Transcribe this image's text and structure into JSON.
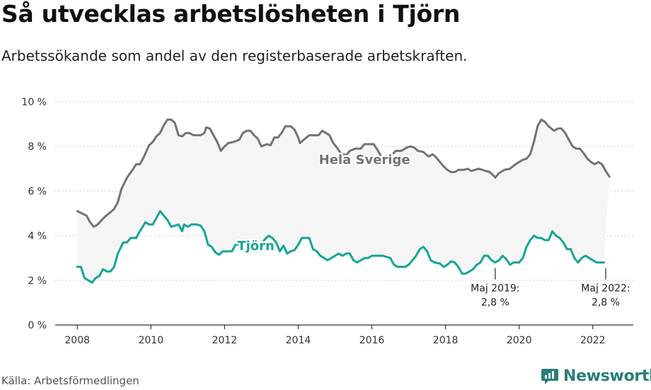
{
  "title": "Så utvecklas arbetslösheten i Tjörn",
  "subtitle": "Arbetssökande som andel av den registerbaserade arbetskraften.",
  "source": "Källa: Arbetsförmedlingen",
  "brand": {
    "name": "Newsworthy",
    "icon": "newsworthy-chat-icon"
  },
  "colors": {
    "sweden": "#737373",
    "tjorn": "#14a595",
    "area": "#f5f5f5",
    "axis": "#333333",
    "grid": "#cccccc",
    "brand": "#2a7d7b"
  },
  "chart_data": {
    "type": "line",
    "title": "Så utvecklas arbetslösheten i Tjörn",
    "xlabel": "",
    "ylabel": "",
    "xlim": [
      2007.4,
      2023.1
    ],
    "ylim": [
      0,
      10
    ],
    "yticks": [
      0,
      2,
      4,
      6,
      8,
      10
    ],
    "ytick_labels": [
      "0 %",
      "2 %",
      "4 %",
      "6 %",
      "8 %",
      "10 %"
    ],
    "xticks": [
      2008,
      2010,
      2012,
      2014,
      2016,
      2018,
      2020,
      2022
    ],
    "xtick_labels": [
      "2008",
      "2010",
      "2012",
      "2014",
      "2016",
      "2018",
      "2020",
      "2022"
    ],
    "grid": true,
    "series": [
      {
        "name": "Hela Sverige",
        "label": "Hela Sverige",
        "label_at": [
          2015.8,
          7.4
        ],
        "points": [
          [
            2008.0,
            5.1
          ],
          [
            2008.25,
            4.9
          ],
          [
            2008.35,
            4.6
          ],
          [
            2008.45,
            4.4
          ],
          [
            2008.55,
            4.5
          ],
          [
            2008.75,
            4.85
          ],
          [
            2008.9,
            5.05
          ],
          [
            2009.0,
            5.2
          ],
          [
            2009.1,
            5.5
          ],
          [
            2009.2,
            6.1
          ],
          [
            2009.35,
            6.6
          ],
          [
            2009.5,
            6.95
          ],
          [
            2009.6,
            7.2
          ],
          [
            2009.7,
            7.2
          ],
          [
            2009.8,
            7.5
          ],
          [
            2009.95,
            8.05
          ],
          [
            2010.05,
            8.2
          ],
          [
            2010.15,
            8.45
          ],
          [
            2010.25,
            8.6
          ],
          [
            2010.35,
            8.95
          ],
          [
            2010.45,
            9.2
          ],
          [
            2010.55,
            9.2
          ],
          [
            2010.65,
            9.05
          ],
          [
            2010.75,
            8.5
          ],
          [
            2010.85,
            8.45
          ],
          [
            2010.95,
            8.6
          ],
          [
            2011.05,
            8.6
          ],
          [
            2011.15,
            8.5
          ],
          [
            2011.35,
            8.5
          ],
          [
            2011.45,
            8.6
          ],
          [
            2011.5,
            8.85
          ],
          [
            2011.6,
            8.8
          ],
          [
            2011.7,
            8.5
          ],
          [
            2011.8,
            8.2
          ],
          [
            2011.9,
            7.8
          ],
          [
            2012.0,
            8.0
          ],
          [
            2012.1,
            8.15
          ],
          [
            2012.25,
            8.2
          ],
          [
            2012.4,
            8.3
          ],
          [
            2012.5,
            8.6
          ],
          [
            2012.6,
            8.7
          ],
          [
            2012.7,
            8.7
          ],
          [
            2012.8,
            8.5
          ],
          [
            2012.9,
            8.35
          ],
          [
            2013.0,
            8.0
          ],
          [
            2013.15,
            8.1
          ],
          [
            2013.25,
            8.05
          ],
          [
            2013.35,
            8.4
          ],
          [
            2013.45,
            8.4
          ],
          [
            2013.55,
            8.6
          ],
          [
            2013.65,
            8.9
          ],
          [
            2013.8,
            8.9
          ],
          [
            2013.9,
            8.75
          ],
          [
            2014.0,
            8.4
          ],
          [
            2014.05,
            8.15
          ],
          [
            2014.15,
            8.3
          ],
          [
            2014.3,
            8.5
          ],
          [
            2014.45,
            8.5
          ],
          [
            2014.55,
            8.5
          ],
          [
            2014.65,
            8.7
          ],
          [
            2014.75,
            8.6
          ],
          [
            2014.85,
            8.5
          ],
          [
            2014.95,
            8.15
          ],
          [
            2015.05,
            7.95
          ],
          [
            2015.15,
            7.7
          ],
          [
            2015.3,
            7.6
          ],
          [
            2015.4,
            7.8
          ],
          [
            2015.55,
            7.9
          ],
          [
            2015.7,
            7.9
          ],
          [
            2015.8,
            8.1
          ],
          [
            2015.9,
            8.1
          ],
          [
            2016.05,
            8.1
          ],
          [
            2016.15,
            7.85
          ],
          [
            2016.25,
            7.55
          ],
          [
            2016.35,
            7.5
          ],
          [
            2016.5,
            7.55
          ],
          [
            2016.65,
            7.8
          ],
          [
            2016.8,
            7.8
          ],
          [
            2016.95,
            7.95
          ],
          [
            2017.05,
            8.0
          ],
          [
            2017.15,
            7.95
          ],
          [
            2017.25,
            7.8
          ],
          [
            2017.4,
            7.75
          ],
          [
            2017.5,
            7.6
          ],
          [
            2017.55,
            7.55
          ],
          [
            2017.65,
            7.65
          ],
          [
            2017.75,
            7.5
          ],
          [
            2017.85,
            7.3
          ],
          [
            2017.95,
            7.1
          ],
          [
            2018.05,
            6.95
          ],
          [
            2018.15,
            6.85
          ],
          [
            2018.25,
            6.85
          ],
          [
            2018.35,
            6.95
          ],
          [
            2018.5,
            6.95
          ],
          [
            2018.6,
            7.0
          ],
          [
            2018.7,
            6.9
          ],
          [
            2018.8,
            6.95
          ],
          [
            2018.9,
            7.0
          ],
          [
            2019.0,
            6.95
          ],
          [
            2019.1,
            6.9
          ],
          [
            2019.2,
            6.85
          ],
          [
            2019.3,
            6.7
          ],
          [
            2019.35,
            6.6
          ],
          [
            2019.45,
            6.8
          ],
          [
            2019.6,
            6.95
          ],
          [
            2019.75,
            7.0
          ],
          [
            2019.9,
            7.2
          ],
          [
            2020.0,
            7.3
          ],
          [
            2020.1,
            7.4
          ],
          [
            2020.2,
            7.45
          ],
          [
            2020.3,
            7.65
          ],
          [
            2020.4,
            8.2
          ],
          [
            2020.5,
            8.9
          ],
          [
            2020.6,
            9.2
          ],
          [
            2020.7,
            9.1
          ],
          [
            2020.8,
            8.9
          ],
          [
            2020.95,
            8.7
          ],
          [
            2021.05,
            8.8
          ],
          [
            2021.15,
            8.8
          ],
          [
            2021.25,
            8.6
          ],
          [
            2021.35,
            8.3
          ],
          [
            2021.45,
            8.0
          ],
          [
            2021.55,
            7.9
          ],
          [
            2021.65,
            7.9
          ],
          [
            2021.75,
            7.7
          ],
          [
            2021.85,
            7.45
          ],
          [
            2021.95,
            7.3
          ],
          [
            2022.05,
            7.2
          ],
          [
            2022.15,
            7.3
          ],
          [
            2022.25,
            7.2
          ],
          [
            2022.35,
            6.9
          ],
          [
            2022.45,
            6.65
          ]
        ]
      },
      {
        "name": "Tjörn",
        "label": "Tjörn",
        "label_at": [
          2012.85,
          3.55
        ],
        "points": [
          [
            2008.0,
            2.6
          ],
          [
            2008.1,
            2.6
          ],
          [
            2008.2,
            2.1
          ],
          [
            2008.3,
            2.0
          ],
          [
            2008.4,
            1.9
          ],
          [
            2008.5,
            2.1
          ],
          [
            2008.6,
            2.2
          ],
          [
            2008.7,
            2.5
          ],
          [
            2008.8,
            2.4
          ],
          [
            2008.9,
            2.4
          ],
          [
            2009.0,
            2.6
          ],
          [
            2009.1,
            3.2
          ],
          [
            2009.25,
            3.7
          ],
          [
            2009.35,
            3.7
          ],
          [
            2009.45,
            3.9
          ],
          [
            2009.6,
            3.9
          ],
          [
            2009.7,
            4.2
          ],
          [
            2009.85,
            4.6
          ],
          [
            2009.95,
            4.5
          ],
          [
            2010.05,
            4.5
          ],
          [
            2010.15,
            4.8
          ],
          [
            2010.25,
            5.1
          ],
          [
            2010.35,
            4.9
          ],
          [
            2010.45,
            4.7
          ],
          [
            2010.55,
            4.4
          ],
          [
            2010.65,
            4.45
          ],
          [
            2010.75,
            4.5
          ],
          [
            2010.85,
            4.2
          ],
          [
            2010.9,
            4.5
          ],
          [
            2011.0,
            4.4
          ],
          [
            2011.1,
            4.5
          ],
          [
            2011.25,
            4.5
          ],
          [
            2011.35,
            4.45
          ],
          [
            2011.45,
            4.2
          ],
          [
            2011.55,
            3.6
          ],
          [
            2011.65,
            3.5
          ],
          [
            2011.75,
            3.25
          ],
          [
            2011.85,
            3.15
          ],
          [
            2011.95,
            3.3
          ],
          [
            2012.1,
            3.3
          ],
          [
            2012.2,
            3.3
          ],
          [
            2012.3,
            3.6
          ],
          [
            2012.4,
            3.6
          ],
          [
            2012.5,
            3.8
          ],
          [
            2012.6,
            3.6
          ],
          [
            2012.7,
            3.6
          ],
          [
            2012.8,
            3.3
          ],
          [
            2012.9,
            3.5
          ],
          [
            2013.0,
            3.6
          ],
          [
            2013.1,
            3.85
          ],
          [
            2013.2,
            4.0
          ],
          [
            2013.3,
            3.9
          ],
          [
            2013.4,
            3.7
          ],
          [
            2013.5,
            3.3
          ],
          [
            2013.6,
            3.55
          ],
          [
            2013.7,
            3.2
          ],
          [
            2013.8,
            3.3
          ],
          [
            2013.9,
            3.35
          ],
          [
            2014.0,
            3.6
          ],
          [
            2014.1,
            3.9
          ],
          [
            2014.2,
            3.9
          ],
          [
            2014.3,
            3.9
          ],
          [
            2014.4,
            3.4
          ],
          [
            2014.5,
            3.3
          ],
          [
            2014.6,
            3.1
          ],
          [
            2014.7,
            3.0
          ],
          [
            2014.8,
            2.9
          ],
          [
            2014.9,
            3.0
          ],
          [
            2015.0,
            3.1
          ],
          [
            2015.1,
            3.2
          ],
          [
            2015.2,
            3.1
          ],
          [
            2015.3,
            3.2
          ],
          [
            2015.4,
            3.2
          ],
          [
            2015.5,
            2.9
          ],
          [
            2015.6,
            2.8
          ],
          [
            2015.7,
            2.9
          ],
          [
            2015.8,
            3.0
          ],
          [
            2015.9,
            3.0
          ],
          [
            2016.0,
            3.1
          ],
          [
            2016.1,
            3.1
          ],
          [
            2016.3,
            3.1
          ],
          [
            2016.5,
            3.0
          ],
          [
            2016.6,
            2.7
          ],
          [
            2016.7,
            2.6
          ],
          [
            2016.8,
            2.6
          ],
          [
            2016.9,
            2.6
          ],
          [
            2017.0,
            2.7
          ],
          [
            2017.1,
            2.9
          ],
          [
            2017.2,
            3.1
          ],
          [
            2017.3,
            3.4
          ],
          [
            2017.4,
            3.5
          ],
          [
            2017.5,
            3.3
          ],
          [
            2017.6,
            2.9
          ],
          [
            2017.7,
            2.8
          ],
          [
            2017.85,
            2.75
          ],
          [
            2017.95,
            2.6
          ],
          [
            2018.05,
            2.7
          ],
          [
            2018.15,
            2.85
          ],
          [
            2018.25,
            2.8
          ],
          [
            2018.35,
            2.6
          ],
          [
            2018.45,
            2.3
          ],
          [
            2018.55,
            2.3
          ],
          [
            2018.65,
            2.4
          ],
          [
            2018.75,
            2.5
          ],
          [
            2018.85,
            2.7
          ],
          [
            2018.95,
            2.8
          ],
          [
            2019.05,
            3.1
          ],
          [
            2019.15,
            3.1
          ],
          [
            2019.25,
            2.9
          ],
          [
            2019.35,
            2.8
          ],
          [
            2019.45,
            2.9
          ],
          [
            2019.55,
            3.1
          ],
          [
            2019.65,
            2.95
          ],
          [
            2019.75,
            2.7
          ],
          [
            2019.85,
            2.8
          ],
          [
            2020.0,
            2.8
          ],
          [
            2020.1,
            3.0
          ],
          [
            2020.2,
            3.5
          ],
          [
            2020.3,
            3.8
          ],
          [
            2020.4,
            4.0
          ],
          [
            2020.5,
            3.9
          ],
          [
            2020.6,
            3.9
          ],
          [
            2020.7,
            3.8
          ],
          [
            2020.8,
            3.8
          ],
          [
            2020.9,
            4.2
          ],
          [
            2021.0,
            4.0
          ],
          [
            2021.1,
            3.9
          ],
          [
            2021.2,
            3.7
          ],
          [
            2021.3,
            3.4
          ],
          [
            2021.4,
            3.4
          ],
          [
            2021.5,
            3.0
          ],
          [
            2021.6,
            2.8
          ],
          [
            2021.7,
            3.0
          ],
          [
            2021.8,
            3.1
          ],
          [
            2021.9,
            3.0
          ],
          [
            2022.0,
            2.9
          ],
          [
            2022.1,
            2.8
          ],
          [
            2022.2,
            2.8
          ],
          [
            2022.3,
            2.8
          ]
        ]
      }
    ],
    "annotations": [
      {
        "x": 2019.35,
        "y": 2.8,
        "text_line1": "Maj 2019:",
        "text_line2": "2,8 %"
      },
      {
        "x": 2022.35,
        "y": 2.8,
        "text_line1": "Maj 2022:",
        "text_line2": "2,8 %"
      }
    ]
  }
}
